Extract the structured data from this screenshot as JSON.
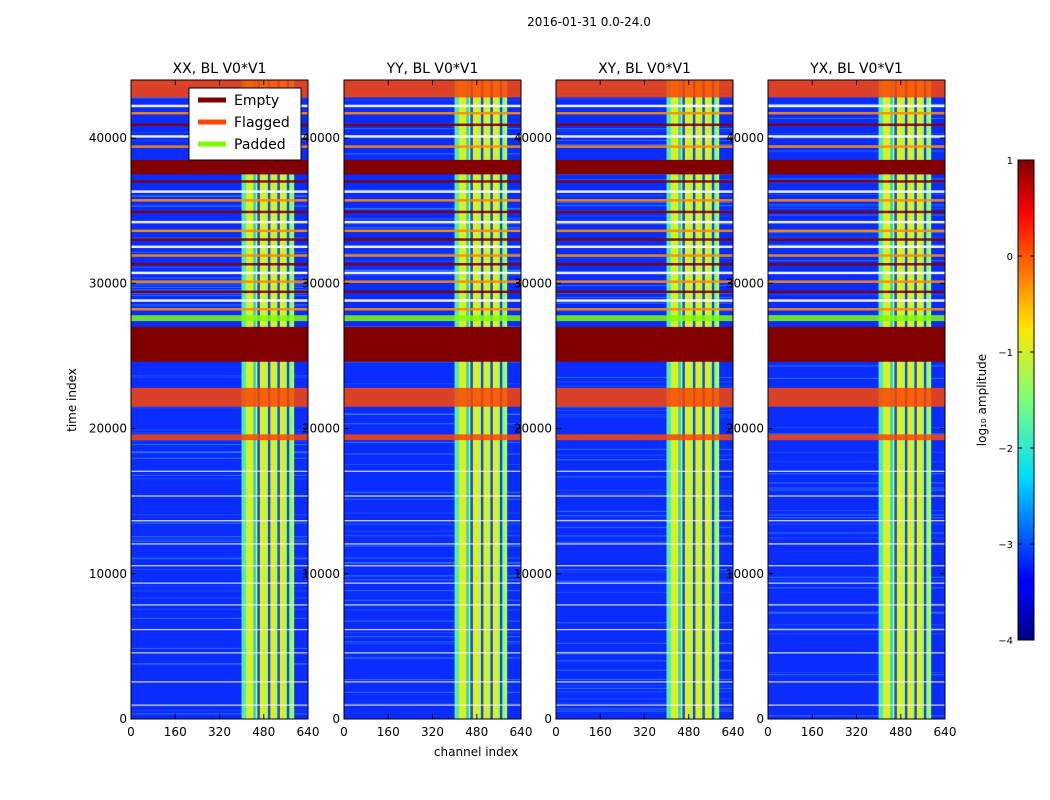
{
  "figure": {
    "suptitle": "2016-01-31 0.0-24.0",
    "xlabel": "channel index",
    "ylabel": "time index"
  },
  "legend": [
    {
      "label": "Empty",
      "color": "#800000"
    },
    {
      "label": "Flagged",
      "color": "#ff4500"
    },
    {
      "label": "Padded",
      "color": "#7fff00"
    }
  ],
  "colorbar": {
    "label": "log₁₀ amplitude",
    "ticks": [
      1,
      0,
      -1,
      -2,
      -3,
      -4
    ],
    "tick_labels": [
      "1",
      "0",
      "−1",
      "−2",
      "−3",
      "−4"
    ],
    "range": [
      -4,
      1
    ],
    "colormap": "jet"
  },
  "chart_data": [
    {
      "type": "heatmap",
      "title": "XX, BL V0*V1",
      "xlim": [
        0,
        640
      ],
      "ylim": [
        0,
        44000
      ],
      "x_ticks": [
        0,
        160,
        320,
        480,
        640
      ],
      "y_ticks": [
        0,
        10000,
        20000,
        30000,
        40000
      ],
      "high_channel_bands": [
        [
          400,
          590
        ]
      ],
      "empty_time_ranges": [
        [
          24600,
          27000
        ],
        [
          37500,
          38500
        ]
      ],
      "flagged_time_ranges": [
        [
          19200,
          19600
        ],
        [
          21500,
          22800
        ],
        [
          42800,
          44000
        ]
      ],
      "padded_time_ranges": [
        [
          27400,
          27800
        ]
      ]
    },
    {
      "type": "heatmap",
      "title": "YY, BL V0*V1",
      "xlim": [
        0,
        640
      ],
      "ylim": [
        0,
        44000
      ],
      "x_ticks": [
        0,
        160,
        320,
        480,
        640
      ],
      "y_ticks": [
        0,
        10000,
        20000,
        30000,
        40000
      ],
      "high_channel_bands": [
        [
          400,
          590
        ]
      ],
      "empty_time_ranges": [
        [
          24600,
          27000
        ],
        [
          37500,
          38500
        ]
      ],
      "flagged_time_ranges": [
        [
          19200,
          19600
        ],
        [
          21500,
          22800
        ],
        [
          42800,
          44000
        ]
      ],
      "padded_time_ranges": [
        [
          27400,
          27800
        ]
      ]
    },
    {
      "type": "heatmap",
      "title": "XY, BL V0*V1",
      "xlim": [
        0,
        640
      ],
      "ylim": [
        0,
        44000
      ],
      "x_ticks": [
        0,
        160,
        320,
        480,
        640
      ],
      "y_ticks": [
        0,
        10000,
        20000,
        30000,
        40000
      ],
      "high_channel_bands": [
        [
          400,
          590
        ]
      ],
      "empty_time_ranges": [
        [
          24600,
          27000
        ],
        [
          37500,
          38500
        ]
      ],
      "flagged_time_ranges": [
        [
          19200,
          19600
        ],
        [
          21500,
          22800
        ],
        [
          42800,
          44000
        ]
      ],
      "padded_time_ranges": [
        [
          27400,
          27800
        ]
      ]
    },
    {
      "type": "heatmap",
      "title": "YX, BL V0*V1",
      "xlim": [
        0,
        640
      ],
      "ylim": [
        0,
        44000
      ],
      "x_ticks": [
        0,
        160,
        320,
        480,
        640
      ],
      "y_ticks": [
        0,
        10000,
        20000,
        30000,
        40000
      ],
      "high_channel_bands": [
        [
          400,
          590
        ]
      ],
      "empty_time_ranges": [
        [
          24600,
          27000
        ],
        [
          37500,
          38500
        ]
      ],
      "flagged_time_ranges": [
        [
          19200,
          19600
        ],
        [
          21500,
          22800
        ],
        [
          42800,
          44000
        ]
      ],
      "padded_time_ranges": [
        [
          27400,
          27800
        ]
      ]
    }
  ]
}
